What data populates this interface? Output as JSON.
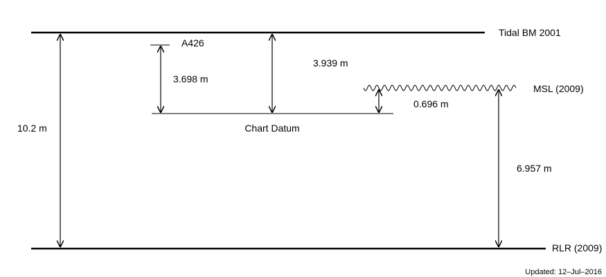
{
  "levels": {
    "tidal_bm": "Tidal BM 2001",
    "msl": "MSL (2009)",
    "rlr": "RLR (2009)",
    "chart_datum": "Chart Datum",
    "benchmark": "A426"
  },
  "measurements": {
    "total_height": "10.2 m",
    "a426_to_chart_datum": "3.698 m",
    "tidal_bm_to_chart_datum": "3.939 m",
    "msl_above_chart_datum": "0.696 m",
    "msl_above_rlr": "6.957 m"
  },
  "footer": {
    "updated": "Updated: 12–Jul–2016"
  }
}
